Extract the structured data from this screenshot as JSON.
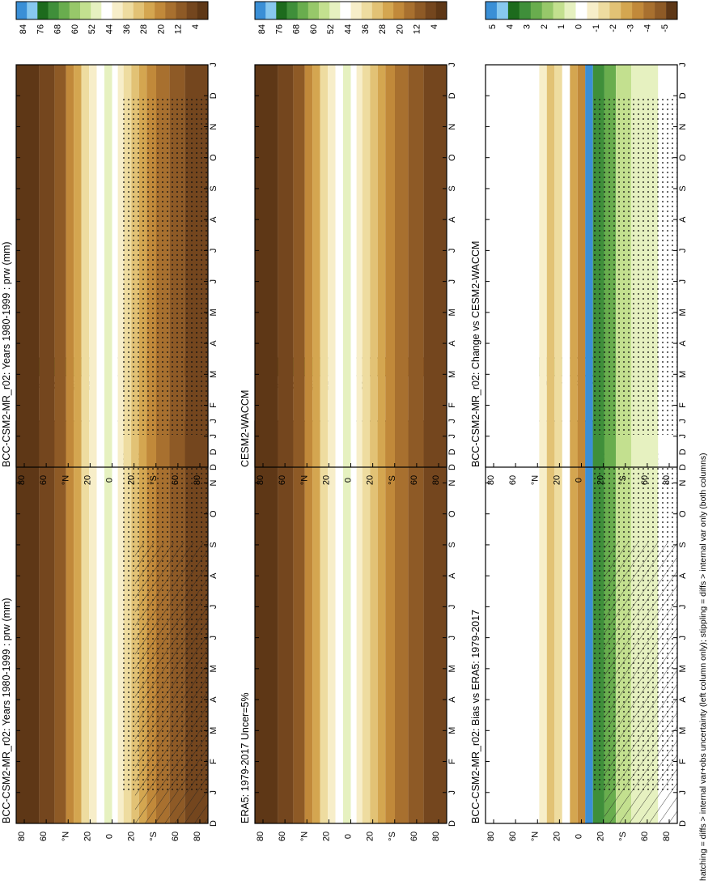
{
  "footnote": "hatching = diffs > internal var+obs uncertainty (left column only); stippling = diffs > internal var only (both columns)",
  "colors": {
    "prw_scale": [
      "#3a8fd6",
      "#87c8ef",
      "#1d6b1d",
      "#3f8f3a",
      "#69ad4e",
      "#97c86a",
      "#c3e08f",
      "#e6f1c0",
      "#ffffff",
      "#f7eec9",
      "#eedca0",
      "#e2c275",
      "#d4a650",
      "#c1893a",
      "#a8702f",
      "#8e5a26",
      "#74461e",
      "#5e3716"
    ],
    "diff_scale": [
      "#3a8fd6",
      "#87c8ef",
      "#1d6b1d",
      "#3f8f3a",
      "#69ad4e",
      "#97c86a",
      "#c3e08f",
      "#e6f1c0",
      "#ffffff",
      "#f7eec9",
      "#eedca0",
      "#e2c275",
      "#d4a650",
      "#c1893a",
      "#a8702f",
      "#8e5a26",
      "#5e3716"
    ]
  },
  "chart_data": [
    {
      "type": "heatmap",
      "title": "BCC-CSM2-MR_r02: Years 1980-1999 : prw (mm)",
      "x_tick_labels": [
        "D",
        "J",
        "F",
        "M",
        "A",
        "M",
        "J",
        "J",
        "A",
        "S",
        "O",
        "N",
        "D",
        "J"
      ],
      "y_tick_labels": [
        "80",
        "60",
        "°N",
        "20",
        "0",
        "20",
        "°S",
        "60",
        "80"
      ],
      "colorbar_labels": [
        "84",
        "76",
        "68",
        "60",
        "52",
        "44",
        "36",
        "28",
        "20",
        "12",
        "4"
      ],
      "overlay": "hatching and stippling"
    },
    {
      "type": "heatmap",
      "title": "BCC-CSM2-MR_r02: Years 1980-1999 : prw (mm)",
      "x_tick_labels": [
        "D",
        "J",
        "F",
        "M",
        "A",
        "M",
        "J",
        "J",
        "A",
        "S",
        "O",
        "N",
        "D",
        "J"
      ],
      "y_tick_labels": [
        "80",
        "60",
        "°N",
        "20",
        "0",
        "20",
        "°S",
        "60",
        "80"
      ],
      "colorbar_labels": [
        "84",
        "76",
        "68",
        "60",
        "52",
        "44",
        "36",
        "28",
        "20",
        "12",
        "4"
      ],
      "overlay": "stippling"
    },
    {
      "type": "heatmap",
      "title": "ERA5: 1979-2017 Uncer=5%",
      "x_tick_labels": [
        "D",
        "J",
        "F",
        "M",
        "A",
        "M",
        "J",
        "J",
        "A",
        "S",
        "O",
        "N",
        "D",
        "J"
      ],
      "y_tick_labels": [
        "80",
        "60",
        "°N",
        "20",
        "0",
        "20",
        "°S",
        "60",
        "80"
      ],
      "colorbar_labels": [
        "84",
        "76",
        "68",
        "60",
        "52",
        "44",
        "36",
        "28",
        "20",
        "12",
        "4"
      ]
    },
    {
      "type": "heatmap",
      "title": "CESM2-WACCM",
      "x_tick_labels": [
        "D",
        "J",
        "F",
        "M",
        "A",
        "M",
        "J",
        "J",
        "A",
        "S",
        "O",
        "N",
        "D",
        "J"
      ],
      "y_tick_labels": [
        "80",
        "60",
        "°N",
        "20",
        "0",
        "20",
        "°S",
        "60",
        "80"
      ],
      "colorbar_labels": [
        "84",
        "76",
        "68",
        "60",
        "52",
        "44",
        "36",
        "28",
        "20",
        "12",
        "4"
      ]
    },
    {
      "type": "heatmap",
      "title": "BCC-CSM2-MR_r02: Bias vs ERA5: 1979-2017",
      "x_tick_labels": [
        "D",
        "J",
        "F",
        "M",
        "A",
        "M",
        "J",
        "J",
        "A",
        "S",
        "O",
        "N",
        "D",
        "J"
      ],
      "y_tick_labels": [
        "80",
        "60",
        "°N",
        "20",
        "0",
        "20",
        "°S",
        "60",
        "80"
      ],
      "colorbar_labels": [
        "5",
        "4",
        "3",
        "2",
        "1",
        "0",
        "-1",
        "-2",
        "-3",
        "-4",
        "-5"
      ],
      "overlay": "hatching and stippling"
    },
    {
      "type": "heatmap",
      "title": "BCC-CSM2-MR_r02: Change vs CESM2-WACCM",
      "x_tick_labels": [
        "D",
        "J",
        "F",
        "M",
        "A",
        "M",
        "J",
        "J",
        "A",
        "S",
        "O",
        "N",
        "D",
        "J"
      ],
      "y_tick_labels": [
        "80",
        "60",
        "°N",
        "20",
        "0",
        "20",
        "°S",
        "60",
        "80"
      ],
      "colorbar_labels": [
        "5",
        "4",
        "3",
        "2",
        "1",
        "0",
        "-1",
        "-2",
        "-3",
        "-4",
        "-5"
      ],
      "overlay": "stippling"
    }
  ]
}
